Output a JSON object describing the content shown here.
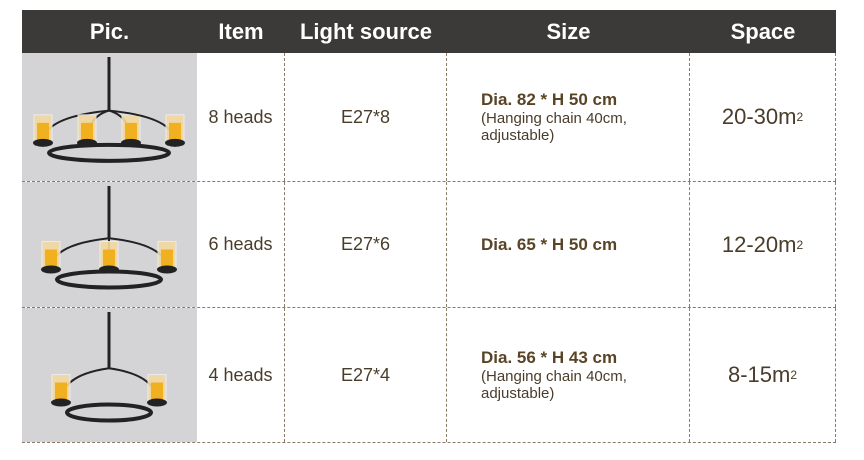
{
  "header": [
    "Pic.",
    "Item",
    "Light source",
    "Size",
    "Space"
  ],
  "rows": [
    {
      "item": "8 heads",
      "source": "E27*8",
      "size": "Dia. 82 * H 50 cm",
      "note1": "(Hanging chain 40cm,",
      "note2": "adjustable)",
      "space": "20-30m",
      "sup": "2"
    },
    {
      "item": "6 heads",
      "source": "E27*6",
      "size": "Dia. 65 * H 50 cm",
      "note1": "",
      "note2": "",
      "space": "12-20m",
      "sup": "2"
    },
    {
      "item": "4 heads",
      "source": "E27*4",
      "size": "Dia. 56 * H 43 cm",
      "note1": "(Hanging chain 40cm,",
      "note2": "adjustable)",
      "space": "8-15m",
      "sup": "2"
    }
  ],
  "colors": {
    "header_bg": "#3b3a38",
    "text": "#5a4426",
    "border": "#8a7a66"
  }
}
